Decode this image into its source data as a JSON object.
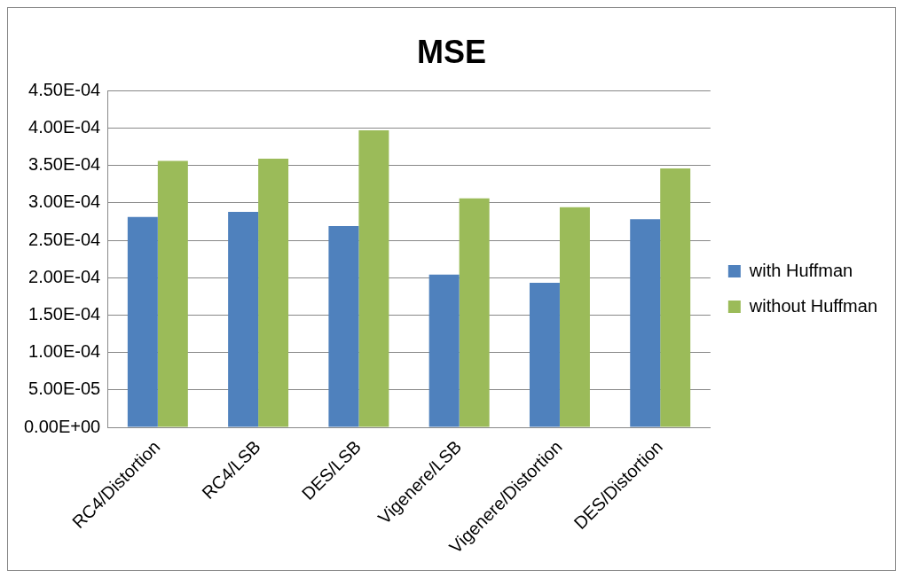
{
  "chart_data": {
    "type": "bar",
    "title": "MSE",
    "categories": [
      "RC4/Distortion",
      "RC4/LSB",
      "DES/LSB",
      "Vigenere/LSB",
      "Vigenere/Distortion",
      "DES/Distortion"
    ],
    "series": [
      {
        "name": "with Huffman",
        "color": "#4f81bd",
        "values": [
          0.000281,
          0.000288,
          0.000269,
          0.000204,
          0.000193,
          0.000278
        ]
      },
      {
        "name": "without Huffman",
        "color": "#9bbb59",
        "values": [
          0.000356,
          0.000359,
          0.000397,
          0.000306,
          0.000294,
          0.000346
        ]
      }
    ],
    "ylim": [
      0,
      0.00045
    ],
    "yticks": [
      {
        "value": 0,
        "label": "0.00E+00"
      },
      {
        "value": 5e-05,
        "label": "5.00E-05"
      },
      {
        "value": 0.0001,
        "label": "1.00E-04"
      },
      {
        "value": 0.00015,
        "label": "1.50E-04"
      },
      {
        "value": 0.0002,
        "label": "2.00E-04"
      },
      {
        "value": 0.00025,
        "label": "2.50E-04"
      },
      {
        "value": 0.0003,
        "label": "3.00E-04"
      },
      {
        "value": 0.00035,
        "label": "3.50E-04"
      },
      {
        "value": 0.0004,
        "label": "4.00E-04"
      },
      {
        "value": 0.00045,
        "label": "4.50E-04"
      }
    ],
    "grid": "y",
    "legend": "right"
  }
}
